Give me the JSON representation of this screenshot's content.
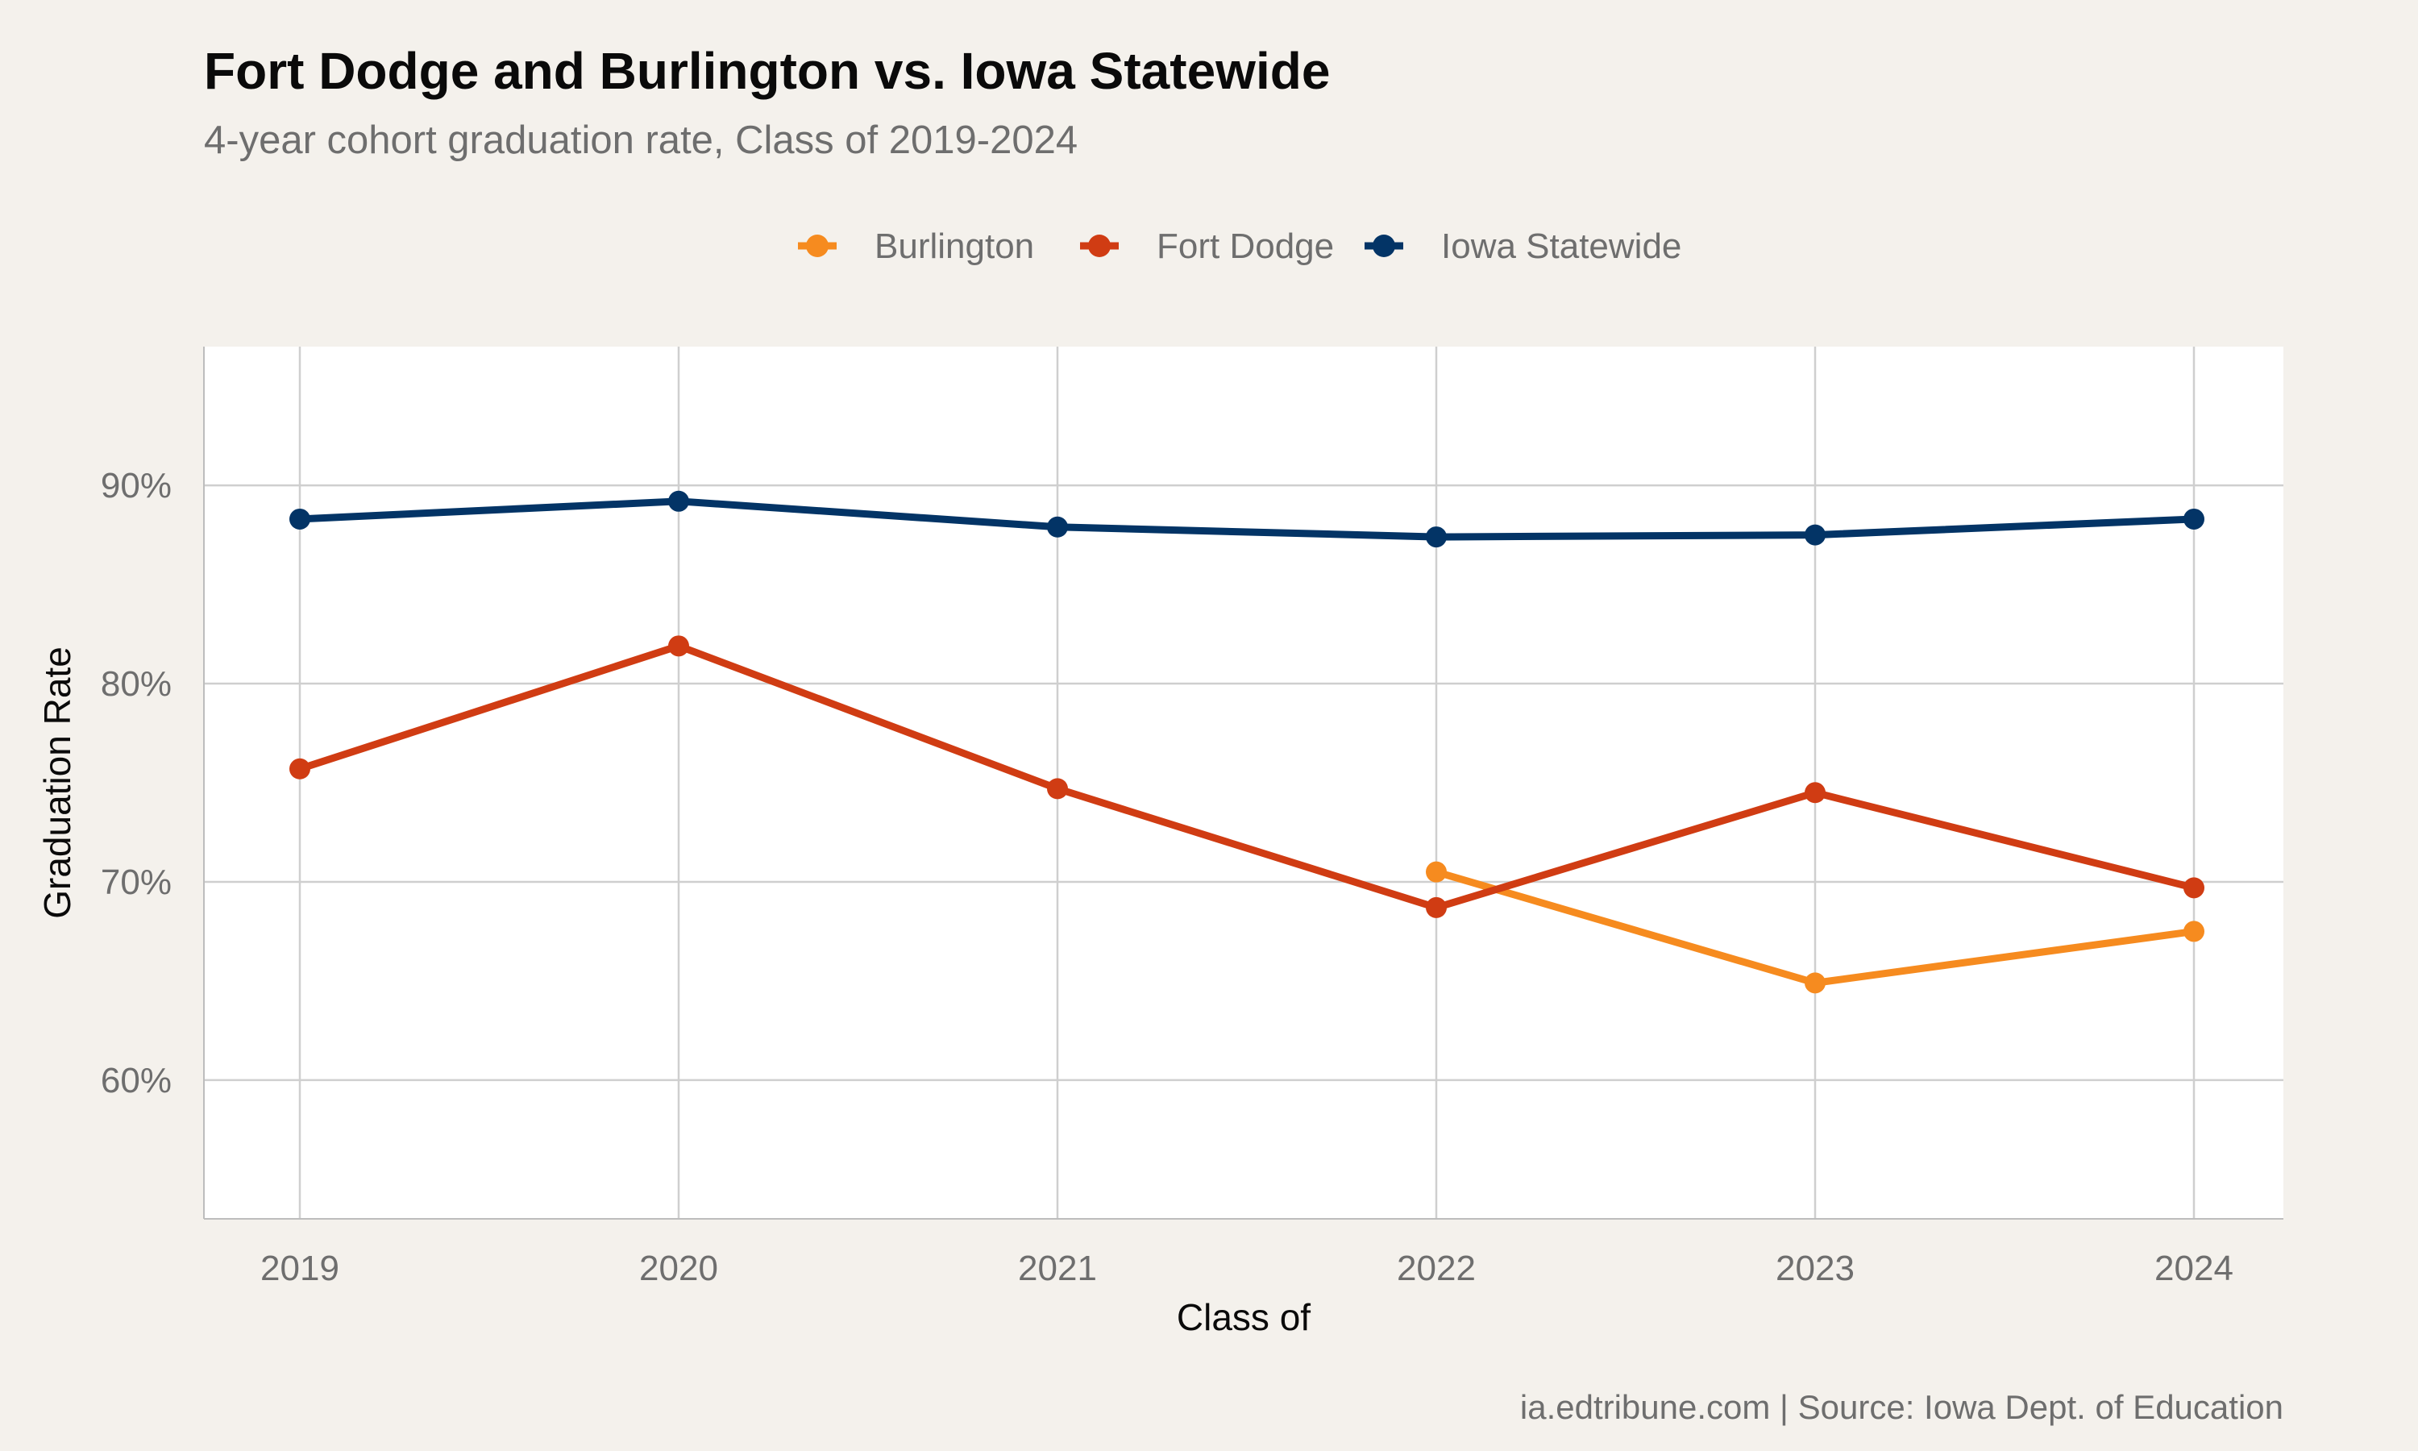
{
  "chart_data": {
    "type": "line",
    "title": "Fort Dodge and Burlington vs. Iowa Statewide",
    "subtitle": "4-year cohort graduation rate, Class of 2019-2024",
    "xlabel": "Class of",
    "ylabel": "Graduation Rate",
    "caption": "ia.edtribune.com | Source: Iowa Dept. of Education",
    "categories": [
      "2019",
      "2020",
      "2021",
      "2022",
      "2023",
      "2024"
    ],
    "y_ticks": [
      {
        "value": 60,
        "label": "60%"
      },
      {
        "value": 70,
        "label": "70%"
      },
      {
        "value": 80,
        "label": "80%"
      },
      {
        "value": 90,
        "label": "90%"
      }
    ],
    "ylim": [
      53,
      97
    ],
    "grid": true,
    "legend_position": "top",
    "series": [
      {
        "name": "Burlington",
        "color": "#F68B1F",
        "values": [
          null,
          null,
          null,
          70.5,
          64.9,
          67.5
        ]
      },
      {
        "name": "Fort Dodge",
        "color": "#D03C13",
        "values": [
          75.7,
          81.9,
          74.7,
          68.7,
          74.5,
          69.7
        ]
      },
      {
        "name": "Iowa Statewide",
        "color": "#033466",
        "values": [
          88.3,
          89.2,
          87.9,
          87.4,
          87.5,
          88.3
        ]
      }
    ]
  }
}
